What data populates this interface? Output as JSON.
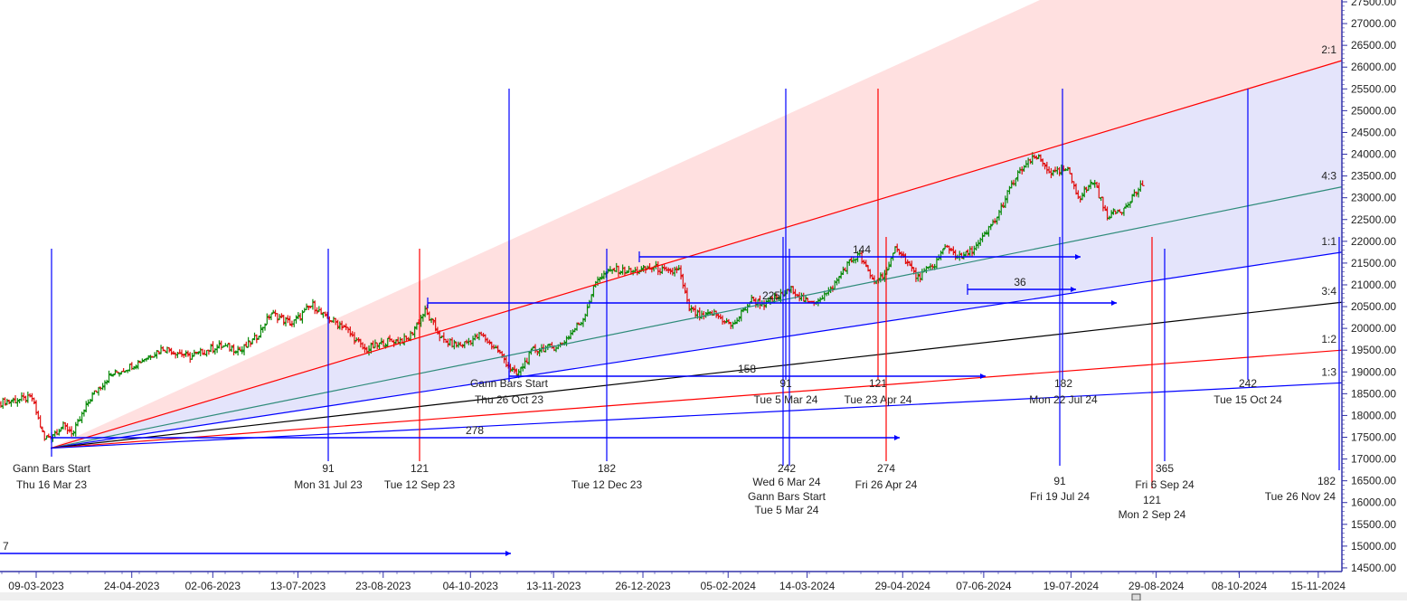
{
  "chart_data": {
    "type": "ohlc-bar",
    "title": "",
    "xlabel": "",
    "ylabel": "",
    "ylim": [
      14500,
      27500
    ],
    "xlim": [
      "2023-02-20",
      "2024-11-28"
    ],
    "grid": false,
    "legend": "none",
    "colors": {
      "up": "#0a8a0a",
      "down": "#e01010",
      "axis": "#3333aa",
      "fan_2_1": "#ff0000",
      "fan_4_3": "#2e8b7a",
      "fan_1_1": "#0000ff",
      "fan_3_4": "#000000",
      "fan_1_2": "#ff0000",
      "fan_1_3": "#0000ff",
      "shade_upper": "#ffe0e0",
      "shade_mid": "#e4e4fb"
    },
    "y_ticks": [
      "14500.00",
      "15000.00",
      "15500.00",
      "16000.00",
      "16500.00",
      "17000.00",
      "17500.00",
      "18000.00",
      "18500.00",
      "19000.00",
      "19500.00",
      "20000.00",
      "20500.00",
      "21000.00",
      "21500.00",
      "22000.00",
      "22500.00",
      "23000.00",
      "23500.00",
      "24000.00",
      "24500.00",
      "25000.00",
      "25500.00",
      "26000.00",
      "26500.00",
      "27000.00",
      "27500.00"
    ],
    "x_ticks": [
      "09-03-2023",
      "24-04-2023",
      "02-06-2023",
      "13-07-2023",
      "23-08-2023",
      "04-10-2023",
      "13-11-2023",
      "26-12-2023",
      "05-02-2024",
      "14-03-2024",
      "29-04-2024",
      "07-06-2024",
      "19-07-2024",
      "29-08-2024",
      "08-10-2024",
      "15-11-2024"
    ],
    "price_closes": [
      [
        "2023-02-20",
        18300
      ],
      [
        "2023-03-07",
        18400
      ],
      [
        "2023-03-13",
        17450
      ],
      [
        "2023-03-22",
        17750
      ],
      [
        "2023-03-27",
        17600
      ],
      [
        "2023-04-04",
        18400
      ],
      [
        "2023-04-13",
        18900
      ],
      [
        "2023-04-26",
        19200
      ],
      [
        "2023-05-09",
        19550
      ],
      [
        "2023-05-22",
        19350
      ],
      [
        "2023-06-05",
        19600
      ],
      [
        "2023-06-16",
        19500
      ],
      [
        "2023-06-23",
        19800
      ],
      [
        "2023-06-30",
        20350
      ],
      [
        "2023-07-10",
        20100
      ],
      [
        "2023-07-20",
        20550
      ],
      [
        "2023-07-26",
        20250
      ],
      [
        "2023-08-04",
        20050
      ],
      [
        "2023-08-14",
        19500
      ],
      [
        "2023-08-25",
        19700
      ],
      [
        "2023-09-04",
        19750
      ],
      [
        "2023-09-12",
        20400
      ],
      [
        "2023-09-21",
        19700
      ],
      [
        "2023-09-29",
        19600
      ],
      [
        "2023-10-09",
        19850
      ],
      [
        "2023-10-17",
        19500
      ],
      [
        "2023-10-26",
        18900
      ],
      [
        "2023-11-03",
        19500
      ],
      [
        "2023-11-16",
        19600
      ],
      [
        "2023-11-27",
        20200
      ],
      [
        "2023-12-04",
        21150
      ],
      [
        "2023-12-12",
        21350
      ],
      [
        "2023-12-21",
        21300
      ],
      [
        "2024-01-01",
        21400
      ],
      [
        "2024-01-08",
        21250
      ],
      [
        "2024-01-12",
        21400
      ],
      [
        "2024-01-17",
        20450
      ],
      [
        "2024-01-23",
        20250
      ],
      [
        "2024-01-29",
        20350
      ],
      [
        "2024-02-07",
        20050
      ],
      [
        "2024-02-16",
        20650
      ],
      [
        "2024-02-23",
        20550
      ],
      [
        "2024-03-01",
        20750
      ],
      [
        "2024-03-07",
        20900
      ],
      [
        "2024-03-15",
        20550
      ],
      [
        "2024-03-25",
        20850
      ],
      [
        "2024-04-02",
        21450
      ],
      [
        "2024-04-08",
        21700
      ],
      [
        "2024-04-15",
        21050
      ],
      [
        "2024-04-22",
        21350
      ],
      [
        "2024-04-26",
        21900
      ],
      [
        "2024-05-06",
        21150
      ],
      [
        "2024-05-14",
        21450
      ],
      [
        "2024-05-20",
        21900
      ],
      [
        "2024-05-27",
        21600
      ],
      [
        "2024-06-04",
        21900
      ],
      [
        "2024-06-07",
        22100
      ],
      [
        "2024-06-14",
        22600
      ],
      [
        "2024-06-19",
        23150
      ],
      [
        "2024-06-25",
        23650
      ],
      [
        "2024-07-02",
        23950
      ],
      [
        "2024-07-10",
        23550
      ],
      [
        "2024-07-17",
        23650
      ],
      [
        "2024-07-23",
        23000
      ],
      [
        "2024-07-30",
        23400
      ],
      [
        "2024-08-05",
        22600
      ],
      [
        "2024-08-12",
        22700
      ],
      [
        "2024-08-23",
        23350
      ]
    ],
    "gann_fan": {
      "start": {
        "date": "2023-03-16",
        "price": 17250
      },
      "lines": [
        {
          "ratio": "2:1",
          "end_price": 26150
        },
        {
          "ratio": "4:3",
          "end_price": 23250
        },
        {
          "ratio": "1:1",
          "end_price": 21750
        },
        {
          "ratio": "3:4",
          "end_price": 20600
        },
        {
          "ratio": "1:2",
          "end_price": 19500
        },
        {
          "ratio": "1:3",
          "end_price": 18750
        }
      ]
    },
    "time_markers": [
      {
        "count": "Gann Bars Start",
        "date": "Thu 16 Mar 23"
      },
      {
        "count": "91",
        "date": "Mon 31 Jul 23"
      },
      {
        "count": "121",
        "date": "Tue 12 Sep 23"
      },
      {
        "count": "Gann Bars Start",
        "date": "Thu 26 Oct 23"
      },
      {
        "count": "182",
        "date": "Tue 12 Dec 23"
      },
      {
        "count": "242",
        "date": "Wed 6 Mar 24"
      },
      {
        "count": "Gann Bars Start",
        "date": "Tue 5 Mar 24"
      },
      {
        "count": "91",
        "date": "Tue 5 Mar 24"
      },
      {
        "count": "121",
        "date": "Tue 23 Apr 24"
      },
      {
        "count": "274",
        "date": "Fri 26 Apr 24"
      },
      {
        "count": "182",
        "date": "Mon 22 Jul 24"
      },
      {
        "count": "91",
        "date": "Fri 19 Jul 24"
      },
      {
        "count": "121",
        "date": "Mon 2 Sep 24"
      },
      {
        "count": "365",
        "date": "Fri 6 Sep 24"
      },
      {
        "count": "242",
        "date": "Tue 15 Oct 24"
      },
      {
        "count": "182",
        "date": "Tue 26 Nov 24"
      }
    ],
    "bar_count_arrows": [
      "7",
      "278",
      "158",
      "225",
      "144",
      "36"
    ]
  }
}
